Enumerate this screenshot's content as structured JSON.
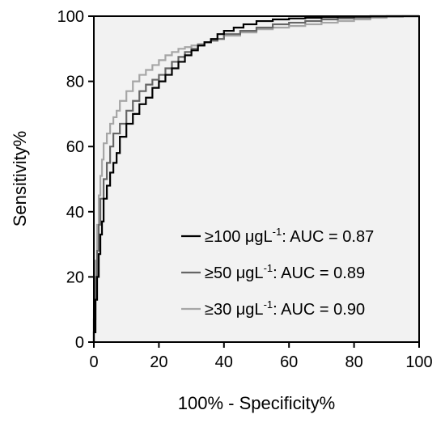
{
  "chart_data": {
    "type": "line",
    "title": "",
    "xlabel": "100% - Specificity%",
    "ylabel": "Sensitivity%",
    "xlim": [
      0,
      100
    ],
    "ylim": [
      0,
      100
    ],
    "xticks": [
      0,
      20,
      40,
      60,
      80,
      100
    ],
    "yticks": [
      0,
      20,
      40,
      60,
      80,
      100
    ],
    "grid": false,
    "plot_background": "#f2f2f2",
    "legend_position": "bottom-right",
    "series": [
      {
        "name": "≥100 μgL-1: AUC = 0.87",
        "label_prefix": "≥100 μgL",
        "label_sup": "-1",
        "label_suffix": ": AUC = 0.87",
        "color": "#000000",
        "x": [
          0,
          0.5,
          1,
          1.5,
          2,
          2.5,
          3,
          4,
          5,
          6,
          7,
          8,
          10,
          12,
          14,
          16,
          18,
          20,
          22,
          24,
          26,
          28,
          30,
          32,
          34,
          36,
          38,
          40,
          43,
          46,
          50,
          55,
          60,
          65,
          70,
          75,
          80,
          85,
          90,
          95,
          100
        ],
        "y": [
          0,
          3,
          13,
          20,
          27,
          33,
          37,
          44,
          48,
          52,
          55,
          58,
          63,
          67,
          70,
          73,
          75,
          78,
          80,
          82,
          84,
          86,
          88,
          89.5,
          91,
          92,
          93,
          94.5,
          95.5,
          96.5,
          97.5,
          98.5,
          99,
          99.3,
          99.5,
          99.7,
          99.8,
          99.9,
          100,
          100,
          100
        ]
      },
      {
        "name": "≥50 μgL-1: AUC = 0.89",
        "label_prefix": "≥50 μgL",
        "label_sup": "-1",
        "label_suffix": ": AUC = 0.89",
        "color": "#666666",
        "x": [
          0,
          0.5,
          1,
          1.5,
          2,
          3,
          4,
          5,
          6,
          8,
          10,
          12,
          14,
          16,
          18,
          20,
          22,
          24,
          26,
          28,
          30,
          32,
          34,
          36,
          38,
          40,
          45,
          50,
          55,
          60,
          65,
          70,
          75,
          80,
          85,
          90,
          95,
          100
        ],
        "y": [
          0,
          7,
          20,
          28,
          36,
          44,
          50,
          55,
          60,
          64,
          67,
          71,
          74,
          77,
          79,
          80.5,
          82,
          84,
          86,
          87.5,
          89,
          90,
          91,
          92,
          92.5,
          93,
          94.5,
          95.5,
          96.5,
          97.5,
          98,
          98.5,
          99,
          99.3,
          99.6,
          99.8,
          100,
          100
        ]
      },
      {
        "name": "≥30 μgL-1: AUC = 0.90",
        "label_prefix": "≥30 μgL",
        "label_sup": "-1",
        "label_suffix": ": AUC = 0.90",
        "color": "#a6a6a6",
        "x": [
          0,
          0.5,
          1,
          1.5,
          2,
          2.5,
          3,
          4,
          5,
          6,
          7,
          8,
          10,
          12,
          14,
          16,
          18,
          20,
          22,
          24,
          26,
          28,
          30,
          32,
          34,
          36,
          38,
          40,
          45,
          50,
          55,
          60,
          65,
          70,
          75,
          80,
          85,
          90,
          95,
          100
        ],
        "y": [
          0,
          10,
          25,
          36,
          45,
          51,
          56,
          61,
          64,
          67,
          69,
          71,
          74,
          77,
          80,
          82,
          83.5,
          85,
          86.5,
          88,
          89,
          90,
          90.5,
          91,
          91.5,
          92,
          92.5,
          93,
          94,
          95,
          96,
          96.5,
          97,
          97.5,
          98,
          98.5,
          99,
          99.5,
          99.8,
          100
        ]
      }
    ]
  }
}
